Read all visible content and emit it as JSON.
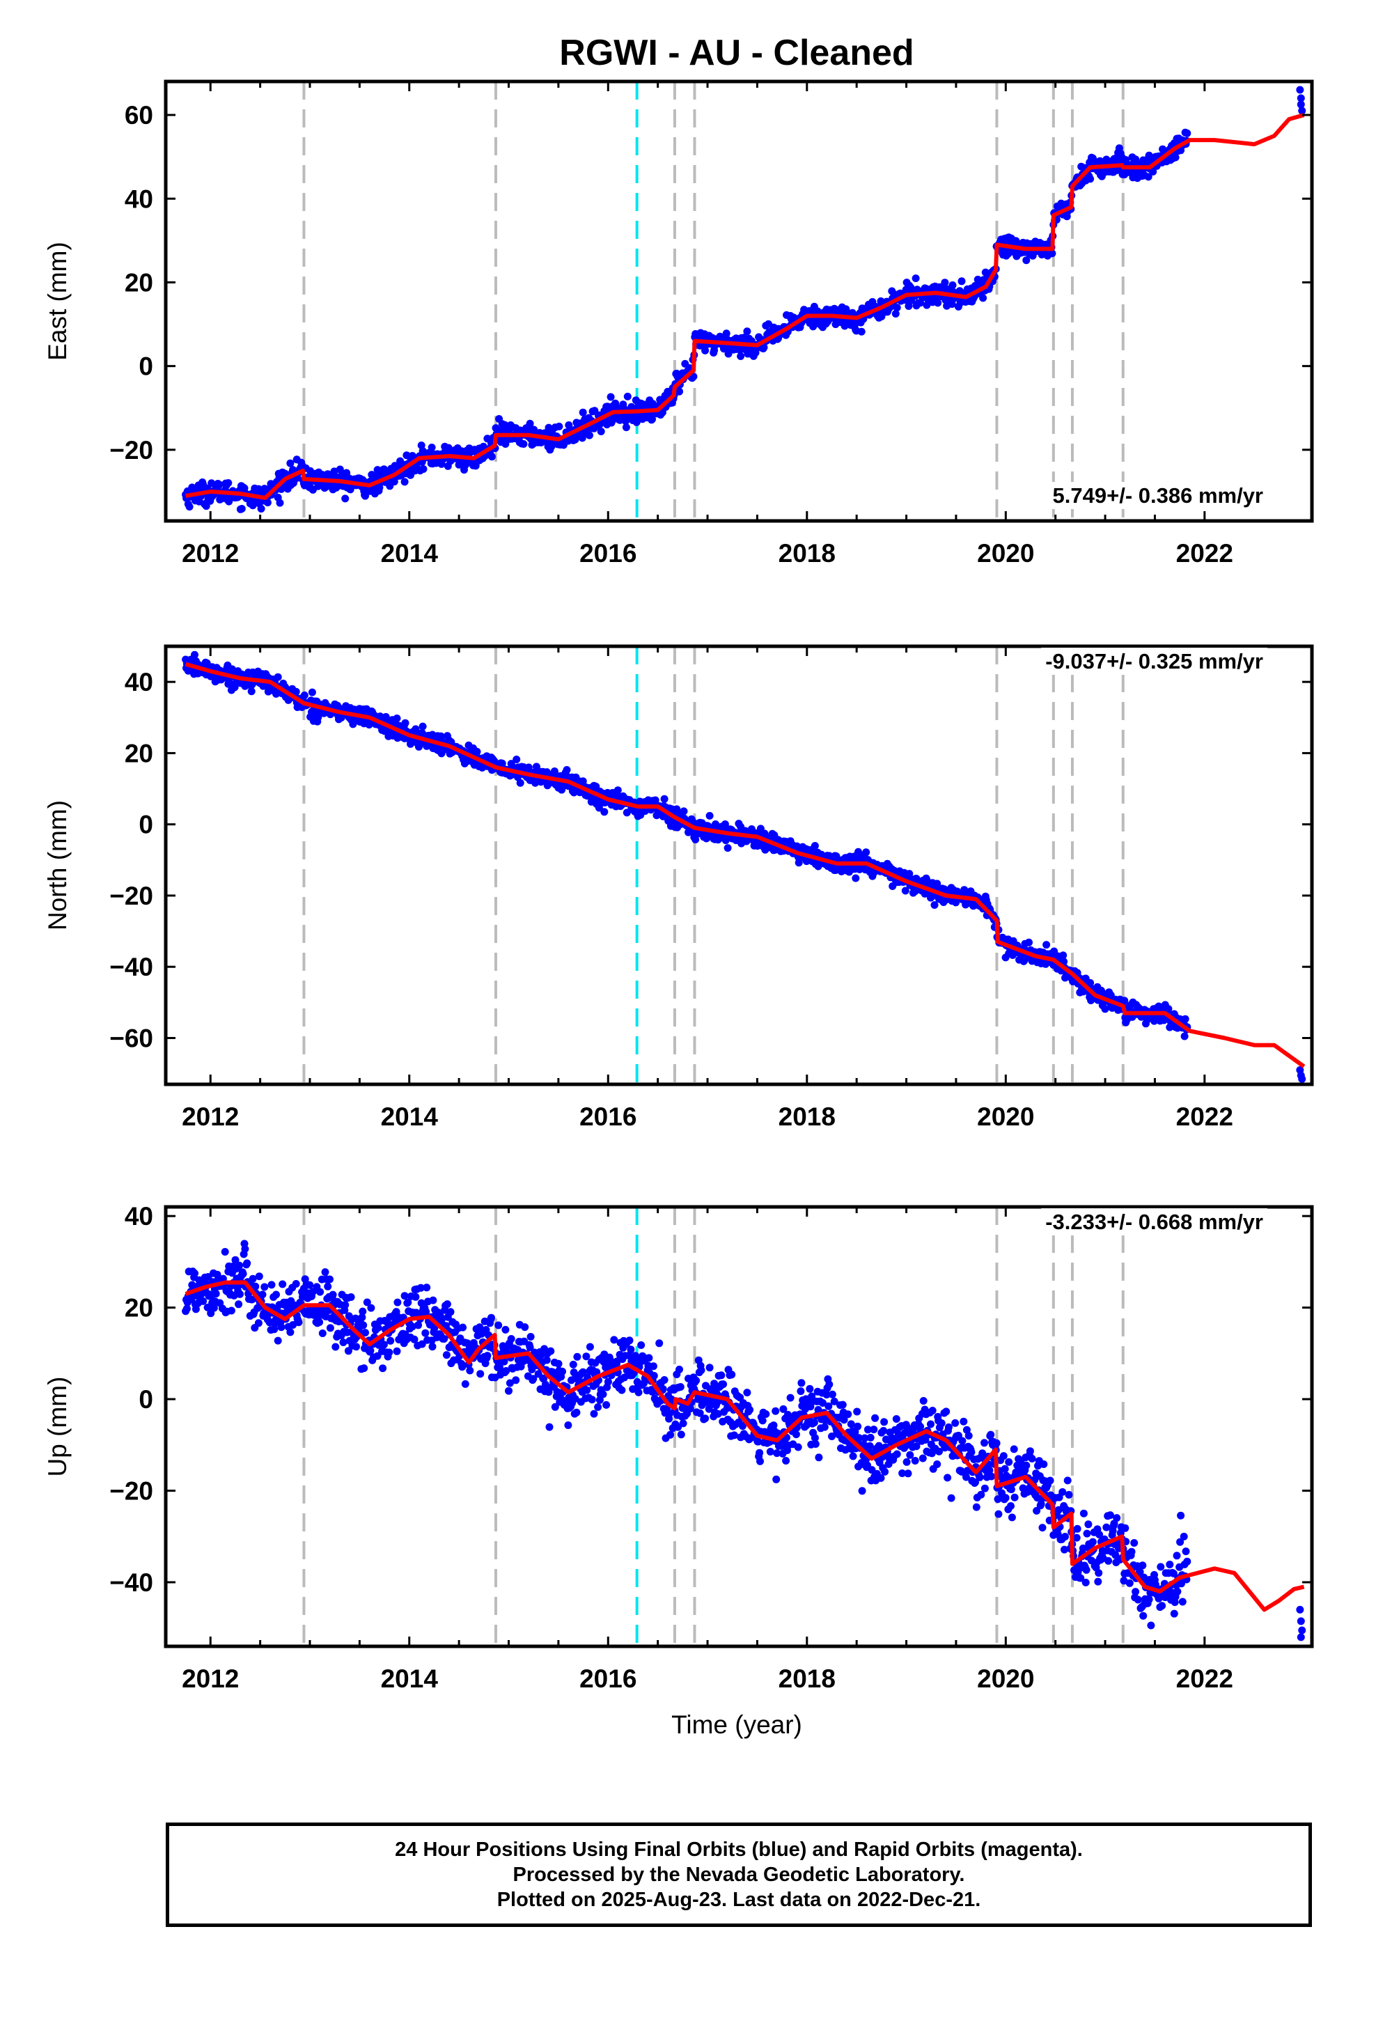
{
  "title": "RGWI  - AU - Cleaned",
  "colors": {
    "final_orbits": "#0000ff",
    "model": "#ff0000",
    "event_line": "#bbbbbb",
    "highlight_line": "#00e5ee"
  },
  "event_years": [
    2012.94,
    2014.87,
    2016.67,
    2016.87,
    2019.91,
    2020.48,
    2020.67,
    2021.18
  ],
  "highlight_year": 2016.29,
  "x_ticks": [
    "2012",
    "2014",
    "2016",
    "2018",
    "2020",
    "2022"
  ],
  "xlabel": "Time (year)",
  "chart_data": [
    {
      "type": "scatter",
      "ylabel": "East (mm)",
      "rate_label": "5.749+/- 0.386 mm/yr",
      "xlim": [
        2011.55,
        2023.08
      ],
      "ylim": [
        -37,
        68
      ],
      "yticks": [
        -20,
        0,
        20,
        40,
        60
      ],
      "y_tick_labels": [
        "−20",
        "0",
        "20",
        "40",
        "60"
      ],
      "grid": false,
      "model": [
        [
          2011.75,
          -31
        ],
        [
          2012.0,
          -30
        ],
        [
          2012.3,
          -30.5
        ],
        [
          2012.55,
          -31.5
        ],
        [
          2012.75,
          -27
        ],
        [
          2012.93,
          -25
        ],
        [
          2012.94,
          -27
        ],
        [
          2013.3,
          -27.5
        ],
        [
          2013.6,
          -28.5
        ],
        [
          2013.85,
          -26
        ],
        [
          2014.1,
          -22
        ],
        [
          2014.4,
          -21.5
        ],
        [
          2014.65,
          -22
        ],
        [
          2014.86,
          -19
        ],
        [
          2014.87,
          -16.5
        ],
        [
          2015.2,
          -16.5
        ],
        [
          2015.5,
          -17.5
        ],
        [
          2015.8,
          -14
        ],
        [
          2016.05,
          -11
        ],
        [
          2016.29,
          -10.8
        ],
        [
          2016.5,
          -10.5
        ],
        [
          2016.66,
          -7
        ],
        [
          2016.67,
          -5
        ],
        [
          2016.86,
          -1
        ],
        [
          2016.87,
          6
        ],
        [
          2017.2,
          5.5
        ],
        [
          2017.5,
          5
        ],
        [
          2017.8,
          9
        ],
        [
          2018.0,
          12
        ],
        [
          2018.25,
          12
        ],
        [
          2018.5,
          11.5
        ],
        [
          2018.75,
          14
        ],
        [
          2019.0,
          17
        ],
        [
          2019.3,
          17.5
        ],
        [
          2019.6,
          16.5
        ],
        [
          2019.8,
          19
        ],
        [
          2019.9,
          23
        ],
        [
          2019.91,
          29
        ],
        [
          2020.2,
          28
        ],
        [
          2020.47,
          28
        ],
        [
          2020.48,
          36
        ],
        [
          2020.66,
          38
        ],
        [
          2020.67,
          43
        ],
        [
          2020.85,
          47.5
        ],
        [
          2021.17,
          48
        ],
        [
          2021.18,
          47.5
        ],
        [
          2021.45,
          47.5
        ],
        [
          2021.7,
          52
        ],
        [
          2021.85,
          54
        ],
        [
          2022.1,
          54
        ],
        [
          2022.5,
          53
        ],
        [
          2022.7,
          55
        ],
        [
          2022.85,
          59
        ],
        [
          2023.0,
          60
        ]
      ],
      "end_points": [
        [
          2022.96,
          66
        ],
        [
          2022.97,
          64
        ],
        [
          2022.97,
          62.5
        ],
        [
          2022.98,
          61
        ]
      ]
    },
    {
      "type": "scatter",
      "ylabel": "North (mm)",
      "rate_label": "-9.037+/- 0.325 mm/yr",
      "xlim": [
        2011.55,
        2023.08
      ],
      "ylim": [
        -73,
        50
      ],
      "yticks": [
        -60,
        -40,
        -20,
        0,
        20,
        40
      ],
      "y_tick_labels": [
        "−60",
        "−40",
        "−20",
        "0",
        "20",
        "40"
      ],
      "grid": false,
      "model": [
        [
          2011.75,
          45
        ],
        [
          2012.0,
          43
        ],
        [
          2012.3,
          41
        ],
        [
          2012.6,
          40
        ],
        [
          2012.94,
          34
        ],
        [
          2013.3,
          31.5
        ],
        [
          2013.6,
          30
        ],
        [
          2014.0,
          25
        ],
        [
          2014.4,
          22
        ],
        [
          2014.87,
          16
        ],
        [
          2015.2,
          14
        ],
        [
          2015.6,
          12
        ],
        [
          2016.0,
          7
        ],
        [
          2016.3,
          5
        ],
        [
          2016.5,
          5
        ],
        [
          2016.67,
          2
        ],
        [
          2016.87,
          -1
        ],
        [
          2017.2,
          -2.5
        ],
        [
          2017.5,
          -3.5
        ],
        [
          2017.9,
          -8
        ],
        [
          2018.3,
          -11
        ],
        [
          2018.6,
          -11
        ],
        [
          2019.0,
          -16
        ],
        [
          2019.4,
          -20
        ],
        [
          2019.7,
          -21
        ],
        [
          2019.91,
          -27
        ],
        [
          2019.92,
          -33
        ],
        [
          2020.3,
          -37
        ],
        [
          2020.48,
          -38
        ],
        [
          2020.67,
          -42
        ],
        [
          2020.9,
          -48
        ],
        [
          2021.18,
          -51
        ],
        [
          2021.2,
          -53
        ],
        [
          2021.6,
          -53
        ],
        [
          2021.85,
          -58
        ],
        [
          2022.2,
          -60
        ],
        [
          2022.5,
          -62
        ],
        [
          2022.7,
          -62
        ],
        [
          2023.0,
          -68
        ]
      ],
      "end_points": [
        [
          2022.96,
          -69
        ],
        [
          2022.97,
          -70.5
        ],
        [
          2022.98,
          -71.5
        ]
      ]
    },
    {
      "type": "scatter",
      "ylabel": "Up (mm)",
      "rate_label": "-3.233+/- 0.668 mm/yr",
      "xlim": [
        2011.55,
        2023.08
      ],
      "ylim": [
        -54,
        42
      ],
      "yticks": [
        -40,
        -20,
        0,
        20,
        40
      ],
      "y_tick_labels": [
        "−40",
        "−20",
        "0",
        "20",
        "40"
      ],
      "grid": false,
      "model": [
        [
          2011.75,
          23
        ],
        [
          2011.95,
          24.5
        ],
        [
          2012.15,
          25.5
        ],
        [
          2012.35,
          25.5
        ],
        [
          2012.55,
          20
        ],
        [
          2012.75,
          17.5
        ],
        [
          2012.94,
          20.5
        ],
        [
          2013.2,
          20.5
        ],
        [
          2013.45,
          15
        ],
        [
          2013.6,
          12
        ],
        [
          2013.8,
          15
        ],
        [
          2014.0,
          17.5
        ],
        [
          2014.2,
          18
        ],
        [
          2014.4,
          14
        ],
        [
          2014.6,
          8
        ],
        [
          2014.7,
          11
        ],
        [
          2014.86,
          14
        ],
        [
          2014.87,
          9
        ],
        [
          2015.2,
          10
        ],
        [
          2015.4,
          5
        ],
        [
          2015.6,
          1.5
        ],
        [
          2015.9,
          5
        ],
        [
          2016.2,
          7.5
        ],
        [
          2016.4,
          5
        ],
        [
          2016.6,
          -1
        ],
        [
          2016.67,
          -2
        ],
        [
          2016.68,
          0
        ],
        [
          2016.8,
          -1
        ],
        [
          2016.87,
          1.5
        ],
        [
          2017.2,
          0
        ],
        [
          2017.5,
          -8
        ],
        [
          2017.7,
          -9
        ],
        [
          2017.95,
          -4
        ],
        [
          2018.2,
          -3
        ],
        [
          2018.4,
          -8
        ],
        [
          2018.65,
          -13
        ],
        [
          2018.9,
          -10
        ],
        [
          2019.2,
          -7
        ],
        [
          2019.4,
          -9
        ],
        [
          2019.7,
          -16
        ],
        [
          2019.9,
          -11
        ],
        [
          2019.91,
          -19
        ],
        [
          2020.2,
          -17
        ],
        [
          2020.47,
          -23
        ],
        [
          2020.48,
          -28
        ],
        [
          2020.66,
          -25
        ],
        [
          2020.67,
          -36
        ],
        [
          2020.9,
          -32.5
        ],
        [
          2021.17,
          -30
        ],
        [
          2021.18,
          -35
        ],
        [
          2021.4,
          -41
        ],
        [
          2021.55,
          -42
        ],
        [
          2021.75,
          -39
        ],
        [
          2022.1,
          -37
        ],
        [
          2022.3,
          -38
        ],
        [
          2022.45,
          -42
        ],
        [
          2022.6,
          -46
        ],
        [
          2022.75,
          -44
        ],
        [
          2022.9,
          -41.5
        ],
        [
          2023.0,
          -41
        ]
      ],
      "end_points": [
        [
          2022.96,
          -46
        ],
        [
          2022.97,
          -48.5
        ],
        [
          2022.98,
          -50.5
        ],
        [
          2022.97,
          -52
        ]
      ]
    }
  ],
  "caption": {
    "line1": "24 Hour Positions Using Final Orbits (blue) and Rapid Orbits (magenta).",
    "line2": "Processed by the Nevada Geodetic Laboratory.",
    "line3": "Plotted on 2025-Aug-23. Last data on 2022-Dec-21."
  }
}
